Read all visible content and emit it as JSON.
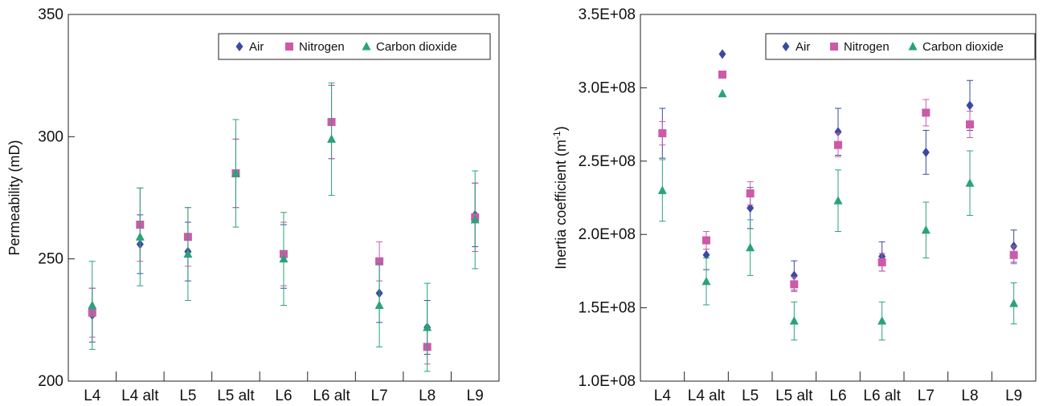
{
  "colors": {
    "air": "#3a4aa0",
    "nitrogen": "#cc5aa8",
    "co2": "#2aa37a"
  },
  "chart_data": [
    {
      "type": "scatter",
      "title": "",
      "xlabel": "",
      "ylabel": "Permeability (mD)",
      "categories": [
        "L4",
        "L4 alt",
        "L5",
        "L5 alt",
        "L6",
        "L6 alt",
        "L7",
        "L8",
        "L9"
      ],
      "ylim": [
        200,
        350
      ],
      "yticks": [
        200,
        250,
        300,
        350
      ],
      "ytick_labels": [
        "200",
        "250",
        "300",
        "350"
      ],
      "legend_position": "top-right",
      "grid": false,
      "series": [
        {
          "name": "Air",
          "marker": "diamond",
          "color_key": "air",
          "values": [
            227,
            256,
            253,
            285,
            251,
            306,
            236,
            222,
            268
          ],
          "errors": [
            11,
            12,
            12,
            14,
            13,
            15,
            12,
            11,
            13
          ]
        },
        {
          "name": "Nitrogen",
          "marker": "square",
          "color_key": "nitrogen",
          "values": [
            228,
            264,
            259,
            285,
            252,
            306,
            249,
            214,
            267
          ],
          "errors": [
            10,
            15,
            12,
            14,
            13,
            15,
            8,
            7,
            14
          ]
        },
        {
          "name": "Carbon dioxide",
          "marker": "triangle",
          "color_key": "co2",
          "values": [
            231,
            259,
            252,
            285,
            250,
            299,
            231,
            222,
            266
          ],
          "errors": [
            18,
            20,
            19,
            22,
            19,
            23,
            17,
            18,
            20
          ]
        }
      ]
    },
    {
      "type": "scatter",
      "title": "",
      "xlabel": "",
      "ylabel": "Inertia coefficient (m",
      "ylabel_sup": "-1",
      "ylabel_close": ")",
      "categories": [
        "L4",
        "L4 alt",
        "L5",
        "L5 alt",
        "L6",
        "L6 alt",
        "L7",
        "L8",
        "L9"
      ],
      "ylim": [
        100000000,
        350000000
      ],
      "yticks": [
        100000000,
        150000000,
        200000000,
        250000000,
        300000000,
        350000000
      ],
      "ytick_labels": [
        "1.0E+08",
        "1.5E+08",
        "2.0E+08",
        "2.5E+08",
        "3.0E+08",
        "3.5E+08"
      ],
      "legend_position": "top-right",
      "grid": false,
      "series": [
        {
          "name": "Air",
          "marker": "diamond",
          "color_key": "air",
          "values": [
            269000000,
            186000000,
            218000000,
            172000000,
            270000000,
            185000000,
            256000000,
            288000000,
            192000000
          ],
          "errors": [
            17000000,
            10000000,
            14000000,
            10000000,
            16000000,
            10000000,
            15000000,
            17000000,
            11000000
          ]
        },
        {
          "name": "Nitrogen",
          "marker": "square",
          "color_key": "nitrogen",
          "values": [
            269000000,
            196000000,
            228000000,
            166000000,
            261000000,
            181000000,
            283000000,
            275000000,
            186000000
          ],
          "errors": [
            8000000,
            6000000,
            8000000,
            5000000,
            8000000,
            6000000,
            9000000,
            9000000,
            6000000
          ]
        },
        {
          "name": "Carbon dioxide",
          "marker": "triangle",
          "color_key": "co2",
          "values": [
            230000000,
            168000000,
            191000000,
            141000000,
            223000000,
            141000000,
            203000000,
            235000000,
            153000000
          ],
          "errors": [
            21000000,
            16000000,
            19000000,
            13000000,
            21000000,
            13000000,
            19000000,
            22000000,
            14000000
          ]
        }
      ]
    }
  ],
  "standalone_points": [
    {
      "chart": 1,
      "category": "L4 alt",
      "series": "Air",
      "value": 323000000
    },
    {
      "chart": 1,
      "category": "L4 alt",
      "series": "Nitrogen",
      "value": 309000000
    },
    {
      "chart": 1,
      "category": "L4 alt",
      "series": "Carbon dioxide",
      "value": 296000000
    }
  ]
}
